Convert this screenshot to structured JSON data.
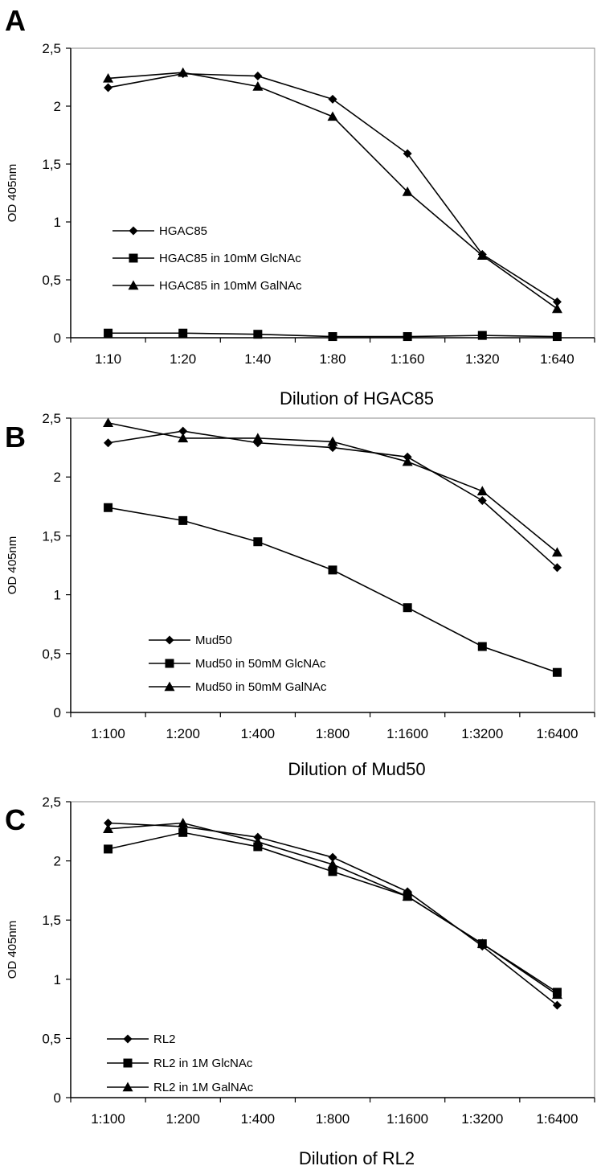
{
  "chart_data": [
    {
      "panel": "A",
      "type": "line",
      "xlabel": "Dilution of HGAC85",
      "ylabel": "OD 405nm",
      "categories": [
        "1:10",
        "1:20",
        "1:40",
        "1:80",
        "1:160",
        "1:320",
        "1:640"
      ],
      "yticks": [
        "0",
        "0,5",
        "1",
        "1,5",
        "2",
        "2,5"
      ],
      "ylim": [
        0,
        2.5
      ],
      "legend_position": "center-left",
      "series": [
        {
          "name": "HGAC85",
          "marker": "diamond",
          "values": [
            2.16,
            2.28,
            2.26,
            2.06,
            1.59,
            0.72,
            0.31
          ]
        },
        {
          "name": "HGAC85 in 10mM GlcNAc",
          "marker": "square",
          "values": [
            0.04,
            0.04,
            0.03,
            0.01,
            0.01,
            0.02,
            0.01
          ]
        },
        {
          "name": "HGAC85 in 10mM GalNAc",
          "marker": "triangle",
          "values": [
            2.24,
            2.29,
            2.17,
            1.91,
            1.26,
            0.71,
            0.25
          ]
        }
      ]
    },
    {
      "panel": "B",
      "type": "line",
      "xlabel": "Dilution of Mud50",
      "ylabel": "OD 405nm",
      "categories": [
        "1:100",
        "1:200",
        "1:400",
        "1:800",
        "1:1600",
        "1:3200",
        "1:6400"
      ],
      "yticks": [
        "0",
        "0,5",
        "1",
        "1,5",
        "2",
        "2,5"
      ],
      "ylim": [
        0,
        2.5
      ],
      "legend_position": "bottom-left",
      "series": [
        {
          "name": "Mud50",
          "marker": "diamond",
          "values": [
            2.29,
            2.39,
            2.29,
            2.25,
            2.17,
            1.8,
            1.23
          ]
        },
        {
          "name": "Mud50 in 50mM GlcNAc",
          "marker": "square",
          "values": [
            1.74,
            1.63,
            1.45,
            1.21,
            0.89,
            0.56,
            0.34
          ]
        },
        {
          "name": "Mud50 in 50mM GalNAc",
          "marker": "triangle",
          "values": [
            2.46,
            2.33,
            2.33,
            2.3,
            2.13,
            1.88,
            1.36
          ]
        }
      ]
    },
    {
      "panel": "C",
      "type": "line",
      "xlabel": "Dilution of RL2",
      "ylabel": "OD 405nm",
      "categories": [
        "1:100",
        "1:200",
        "1:400",
        "1:800",
        "1:1600",
        "1:3200",
        "1:6400"
      ],
      "yticks": [
        "0",
        "0,5",
        "1",
        "1,5",
        "2",
        "2,5"
      ],
      "ylim": [
        0,
        2.5
      ],
      "legend_position": "bottom-left",
      "series": [
        {
          "name": "RL2",
          "marker": "diamond",
          "values": [
            2.32,
            2.29,
            2.2,
            2.03,
            1.74,
            1.28,
            0.78
          ]
        },
        {
          "name": "RL2 in 1M GlcNAc",
          "marker": "square",
          "values": [
            2.1,
            2.24,
            2.12,
            1.91,
            1.7,
            1.3,
            0.89
          ]
        },
        {
          "name": "RL2 in 1M GalNAc",
          "marker": "triangle",
          "values": [
            2.27,
            2.32,
            2.16,
            1.97,
            1.7,
            1.3,
            0.87
          ]
        }
      ]
    }
  ]
}
